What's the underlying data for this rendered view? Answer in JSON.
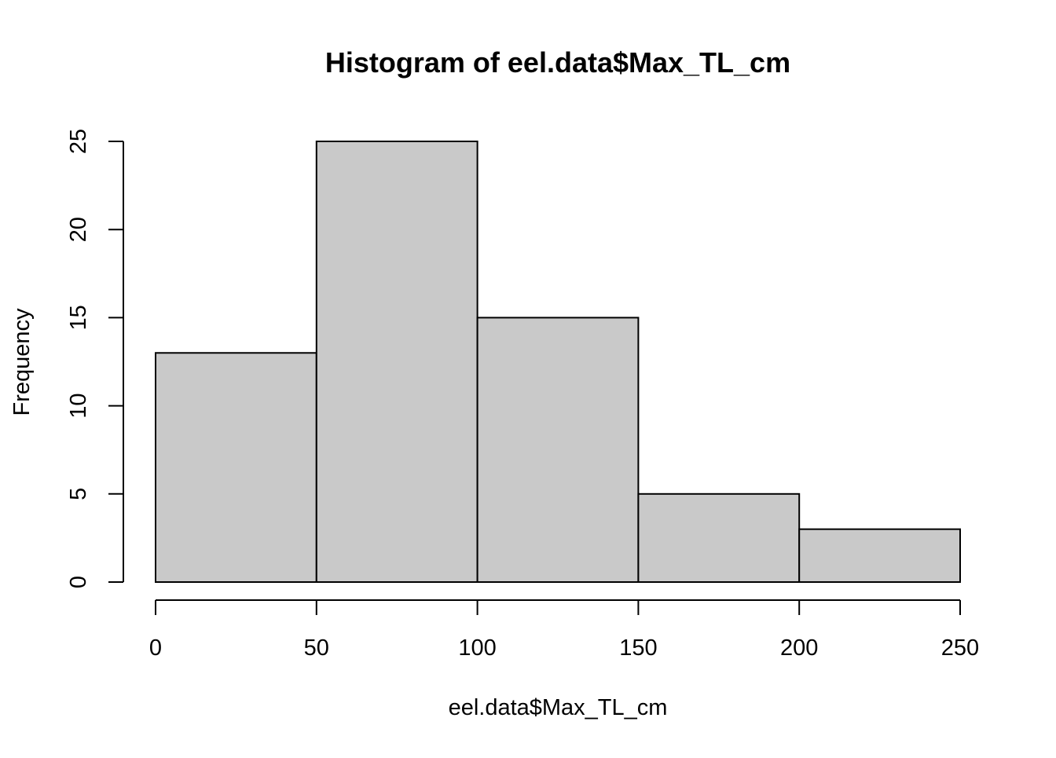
{
  "chart_data": {
    "type": "bar",
    "title": "Histogram of eel.data$Max_TL_cm",
    "xlabel": "eel.data$Max_TL_cm",
    "ylabel": "Frequency",
    "bins": [
      {
        "from": 0,
        "to": 50,
        "count": 13
      },
      {
        "from": 50,
        "to": 100,
        "count": 25
      },
      {
        "from": 100,
        "to": 150,
        "count": 15
      },
      {
        "from": 150,
        "to": 200,
        "count": 5
      },
      {
        "from": 200,
        "to": 250,
        "count": 3
      }
    ],
    "xlim": [
      0,
      250
    ],
    "ylim": [
      0,
      25
    ],
    "xticks": [
      "0",
      "50",
      "100",
      "150",
      "200",
      "250"
    ],
    "yticks": [
      "0",
      "5",
      "10",
      "15",
      "20",
      "25"
    ],
    "bar_fill": "#c9c9c9",
    "bar_stroke": "#000000",
    "grid": false,
    "legend": "none"
  }
}
